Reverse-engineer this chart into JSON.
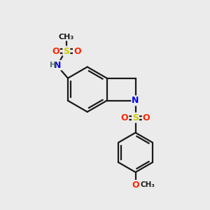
{
  "bg_color": "#ebebeb",
  "bond_color": "#1a1a1a",
  "atom_colors": {
    "S": "#cccc00",
    "O": "#ff2200",
    "N": "#0000ee",
    "H": "#507070",
    "C": "#1a1a1a"
  },
  "figsize": [
    3.0,
    3.0
  ],
  "dpi": 100
}
